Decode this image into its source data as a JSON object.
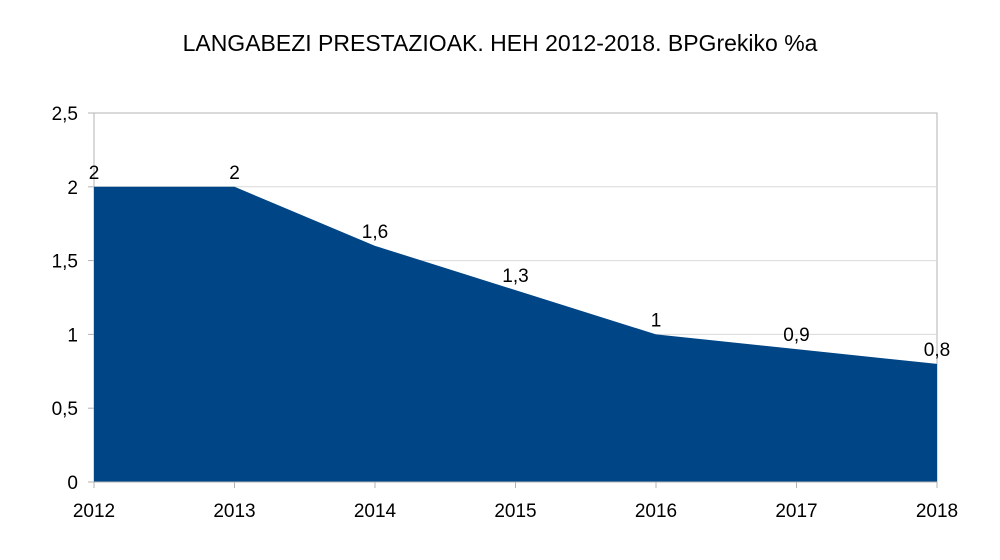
{
  "colors": {
    "area_fill": "#004586",
    "grid": "#d9d9d9",
    "axis": "#b3b3b3",
    "text": "#000000"
  },
  "chart_data": {
    "type": "area",
    "title": "LANGABEZI PRESTAZIOAK. HEH 2012-2018. BPGrekiko %a",
    "xlabel": "",
    "ylabel": "",
    "categories": [
      "2012",
      "2013",
      "2014",
      "2015",
      "2016",
      "2017",
      "2018"
    ],
    "series": [
      {
        "values": [
          2,
          2,
          1.6,
          1.3,
          1,
          0.9,
          0.8
        ],
        "data_labels": [
          "2",
          "2",
          "1,6",
          "1,3",
          "1",
          "0,9",
          "0,8"
        ]
      }
    ],
    "ylim": [
      0,
      2.5
    ],
    "yticks": [
      0,
      0.5,
      1,
      1.5,
      2,
      2.5
    ],
    "ytick_labels": [
      "0",
      "0,5",
      "1",
      "1,5",
      "2",
      "2,5"
    ],
    "grid": true,
    "legend": "none"
  }
}
